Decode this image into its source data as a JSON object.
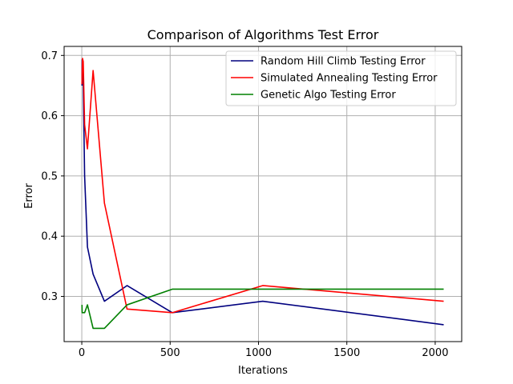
{
  "chart_data": {
    "type": "line",
    "title": "Comparison of Algorithms Test Error",
    "xlabel": "Iterations",
    "ylabel": "Error",
    "xlim": [
      -100,
      2150
    ],
    "ylim": [
      0.225,
      0.715
    ],
    "xticks": [
      0,
      500,
      1000,
      1500,
      2000
    ],
    "yticks": [
      0.3,
      0.4,
      0.5,
      0.6,
      0.7
    ],
    "xtick_labels": [
      "0",
      "500",
      "1000",
      "1500",
      "2000"
    ],
    "ytick_labels": [
      "0.3",
      "0.4",
      "0.5",
      "0.6",
      "0.7"
    ],
    "grid": true,
    "legend_position": "upper-right",
    "series": [
      {
        "name": "Random Hill Climb Testing Error",
        "color": "#00007f",
        "x": [
          1,
          2,
          4,
          8,
          16,
          32,
          64,
          128,
          256,
          512,
          1024,
          2048
        ],
        "y": [
          0.65,
          0.693,
          0.685,
          0.66,
          0.5,
          0.382,
          0.337,
          0.292,
          0.318,
          0.273,
          0.292,
          0.253
        ]
      },
      {
        "name": "Simulated Annealing Testing Error",
        "color": "#ff0000",
        "x": [
          1,
          2,
          4,
          8,
          16,
          32,
          64,
          128,
          256,
          512,
          1024,
          2048
        ],
        "y": [
          0.652,
          0.673,
          0.695,
          0.69,
          0.585,
          0.545,
          0.675,
          0.455,
          0.279,
          0.273,
          0.318,
          0.292
        ]
      },
      {
        "name": "Genetic Algo Testing Error",
        "color": "#008000",
        "x": [
          1,
          2,
          4,
          8,
          16,
          32,
          64,
          128,
          256,
          512,
          1024,
          2048
        ],
        "y": [
          0.286,
          0.273,
          0.273,
          0.273,
          0.273,
          0.286,
          0.247,
          0.247,
          0.286,
          0.312,
          0.312,
          0.312
        ]
      }
    ]
  }
}
